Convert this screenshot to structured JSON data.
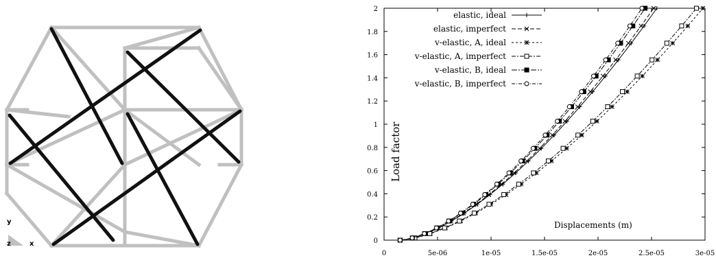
{
  "structure": {
    "triad": {
      "y": "y",
      "z": "z",
      "x": "x"
    },
    "colors": {
      "gray_member": "#c0c0c0",
      "black_member": "#111111"
    }
  },
  "chart_data": {
    "type": "line",
    "xlabel": "Displacements (m)",
    "ylabel": "Load factor",
    "xlim": [
      0,
      3e-05
    ],
    "ylim": [
      0,
      2
    ],
    "x_ticks": [
      "0",
      "5e-06",
      "1e-05",
      "1.5e-05",
      "2e-05",
      "2.5e-05",
      "3e-05"
    ],
    "y_ticks": [
      "0",
      "0.2",
      "0.4",
      "0.6",
      "0.8",
      "1",
      "1.2",
      "1.4",
      "1.6",
      "1.8",
      "2"
    ],
    "grid": false,
    "legend_position": "top-left",
    "series": [
      {
        "name": "elastic, ideal",
        "marker": "plus",
        "dash": "solid",
        "x_end": 2.55e-05
      },
      {
        "name": "elastic, imperfect",
        "marker": "cross",
        "dash": "6,3",
        "x_end": 2.52e-05
      },
      {
        "name": "v-elastic, A, ideal",
        "marker": "star",
        "dash": "3,3",
        "x_end": 2.98e-05
      },
      {
        "name": "v-elastic, A, imperfect",
        "marker": "square-open",
        "dash": "6,2,2,2",
        "x_end": 2.92e-05
      },
      {
        "name": "v-elastic, B, ideal",
        "marker": "square-filled",
        "dash": "8,2,2,2",
        "x_end": 2.44e-05
      },
      {
        "name": "v-elastic, B, imperfect",
        "marker": "circle-open",
        "dash": "5,2,1,2",
        "x_end": 2.41e-05
      }
    ],
    "curve_start": {
      "x": 1.5e-06,
      "y": 0
    }
  }
}
